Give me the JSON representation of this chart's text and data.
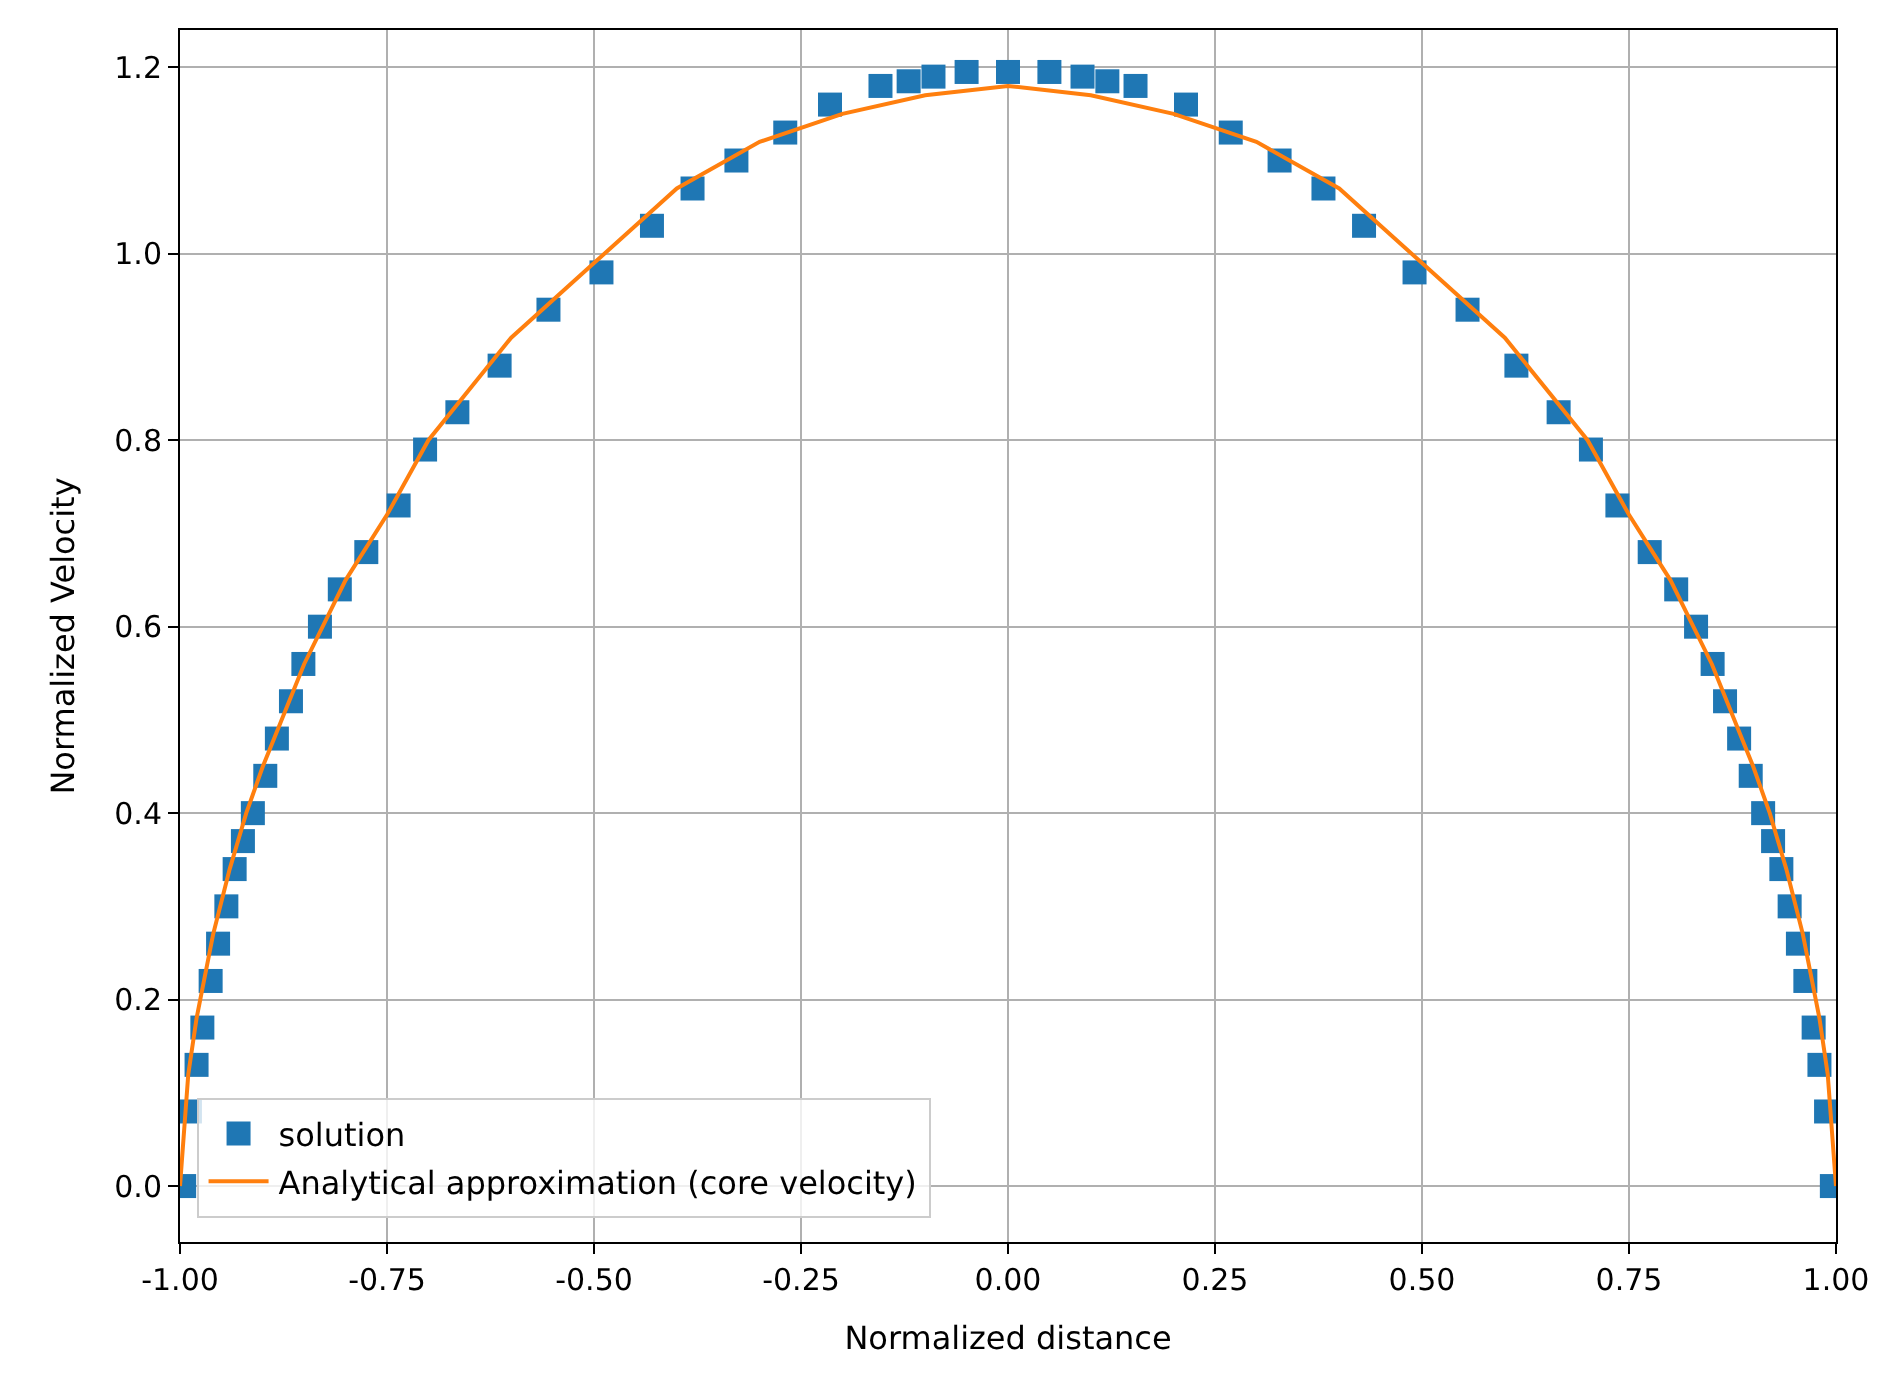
{
  "chart_data": {
    "type": "scatter",
    "xlabel": "Normalized distance",
    "ylabel": "Normalized Velocity",
    "xlim": [
      -1.0,
      1.0
    ],
    "ylim": [
      -0.06,
      1.24
    ],
    "xticks": [
      {
        "value": -1,
        "label": "-1.00"
      },
      {
        "value": -0.75,
        "label": "-0.75"
      },
      {
        "value": -0.5,
        "label": "-0.50"
      },
      {
        "value": -0.25,
        "label": "-0.25"
      },
      {
        "value": 0,
        "label": "0.00"
      },
      {
        "value": 0.25,
        "label": "0.25"
      },
      {
        "value": 0.5,
        "label": "0.50"
      },
      {
        "value": 0.75,
        "label": "0.75"
      },
      {
        "value": 1,
        "label": "1.00"
      }
    ],
    "yticks": [
      {
        "value": 0,
        "label": "0.0"
      },
      {
        "value": 0.2,
        "label": "0.2"
      },
      {
        "value": 0.4,
        "label": "0.4"
      },
      {
        "value": 0.6,
        "label": "0.6"
      },
      {
        "value": 0.8,
        "label": "0.8"
      },
      {
        "value": 1,
        "label": "1.0"
      },
      {
        "value": 1.2,
        "label": "1.2"
      }
    ],
    "grid": true,
    "legend": "bottom left",
    "series": [
      {
        "name": "solution",
        "marker": "square",
        "color": "#1f77b4",
        "x": [
          -0.995,
          -0.988,
          -0.98,
          -0.973,
          -0.963,
          -0.954,
          -0.944,
          -0.934,
          -0.924,
          -0.912,
          -0.897,
          -0.883,
          -0.866,
          -0.851,
          -0.831,
          -0.807,
          -0.775,
          -0.736,
          -0.704,
          -0.665,
          -0.614,
          -0.555,
          -0.491,
          -0.43,
          -0.381,
          -0.328,
          -0.269,
          -0.215,
          -0.154,
          -0.12,
          -0.09,
          -0.05,
          0.0,
          0.05,
          0.09,
          0.12,
          0.154,
          0.215,
          0.269,
          0.328,
          0.381,
          0.43,
          0.491,
          0.555,
          0.614,
          0.665,
          0.704,
          0.736,
          0.775,
          0.807,
          0.831,
          0.851,
          0.866,
          0.883,
          0.897,
          0.912,
          0.924,
          0.934,
          0.944,
          0.954,
          0.963,
          0.973,
          0.98,
          0.988,
          0.995
        ],
        "values": [
          0.0,
          0.08,
          0.13,
          0.17,
          0.22,
          0.26,
          0.3,
          0.34,
          0.37,
          0.4,
          0.44,
          0.48,
          0.52,
          0.56,
          0.6,
          0.64,
          0.68,
          0.73,
          0.79,
          0.83,
          0.88,
          0.94,
          0.98,
          1.03,
          1.07,
          1.1,
          1.13,
          1.16,
          1.18,
          1.185,
          1.19,
          1.195,
          1.195,
          1.195,
          1.19,
          1.185,
          1.18,
          1.16,
          1.13,
          1.1,
          1.07,
          1.03,
          0.98,
          0.94,
          0.88,
          0.83,
          0.79,
          0.73,
          0.68,
          0.64,
          0.6,
          0.56,
          0.52,
          0.48,
          0.44,
          0.4,
          0.37,
          0.34,
          0.3,
          0.26,
          0.22,
          0.17,
          0.13,
          0.08,
          0.0
        ]
      },
      {
        "name": "Analytical approximation (core velocity)",
        "type": "line",
        "marker": "none",
        "line_style": "solid",
        "color": "#ff7f0e",
        "x": [
          -1.0,
          -0.99,
          -0.98,
          -0.96,
          -0.94,
          -0.92,
          -0.9,
          -0.85,
          -0.8,
          -0.75,
          -0.7,
          -0.6,
          -0.5,
          -0.4,
          -0.3,
          -0.2,
          -0.1,
          0.0,
          0.1,
          0.2,
          0.3,
          0.4,
          0.5,
          0.6,
          0.7,
          0.75,
          0.8,
          0.85,
          0.9,
          0.92,
          0.94,
          0.96,
          0.98,
          0.99,
          1.0
        ],
        "values": [
          0.0,
          0.12,
          0.18,
          0.27,
          0.34,
          0.4,
          0.45,
          0.56,
          0.65,
          0.72,
          0.8,
          0.91,
          0.99,
          1.07,
          1.12,
          1.15,
          1.17,
          1.18,
          1.17,
          1.15,
          1.12,
          1.07,
          0.99,
          0.91,
          0.8,
          0.72,
          0.65,
          0.56,
          0.45,
          0.4,
          0.34,
          0.27,
          0.18,
          0.12,
          0.0
        ]
      }
    ]
  }
}
